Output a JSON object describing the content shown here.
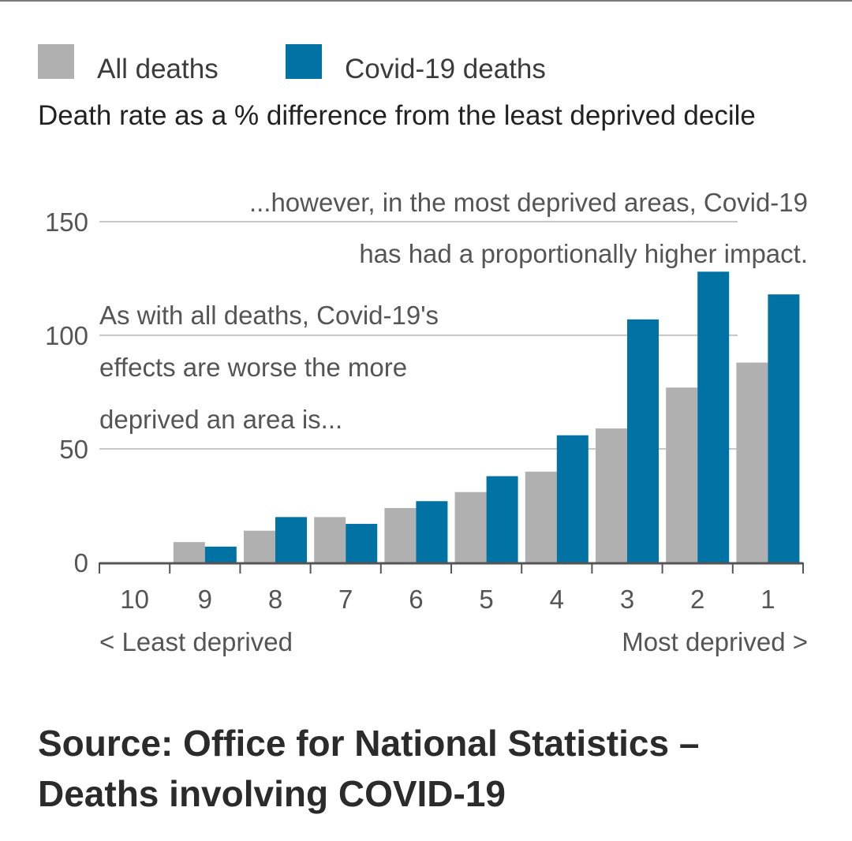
{
  "legend": [
    {
      "label": "All deaths",
      "color": "#b0b0b0"
    },
    {
      "label": "Covid-19 deaths",
      "color": "#0072a3"
    }
  ],
  "subtitle": "Death rate as a % difference from the least deprived decile",
  "annotations": {
    "right_line1": "...however, in the most deprived areas, Covid-19",
    "right_line2": "has had a proportionally higher impact.",
    "left_line1": "As with all deaths, Covid-19's",
    "left_line2": "effects are worse the more",
    "left_line3": "deprived an area is..."
  },
  "axis_end_labels": {
    "left": "< Least deprived",
    "right": "Most deprived >"
  },
  "source": {
    "line1": "Source: Office for National Statistics –",
    "line2": "Deaths involving COVID-19"
  },
  "chart_data": {
    "type": "bar",
    "categories": [
      "10",
      "9",
      "8",
      "7",
      "6",
      "5",
      "4",
      "3",
      "2",
      "1"
    ],
    "series": [
      {
        "name": "All deaths",
        "color": "#b0b0b0",
        "values": [
          0,
          9,
          14,
          20,
          24,
          31,
          40,
          59,
          77,
          88
        ]
      },
      {
        "name": "Covid-19 deaths",
        "color": "#0072a3",
        "values": [
          0,
          7,
          20,
          17,
          27,
          38,
          56,
          107,
          128,
          118
        ]
      }
    ],
    "yticks": [
      0,
      50,
      100,
      150
    ],
    "ylim": [
      0,
      150
    ],
    "grid": true,
    "legend_position": "top-left"
  }
}
